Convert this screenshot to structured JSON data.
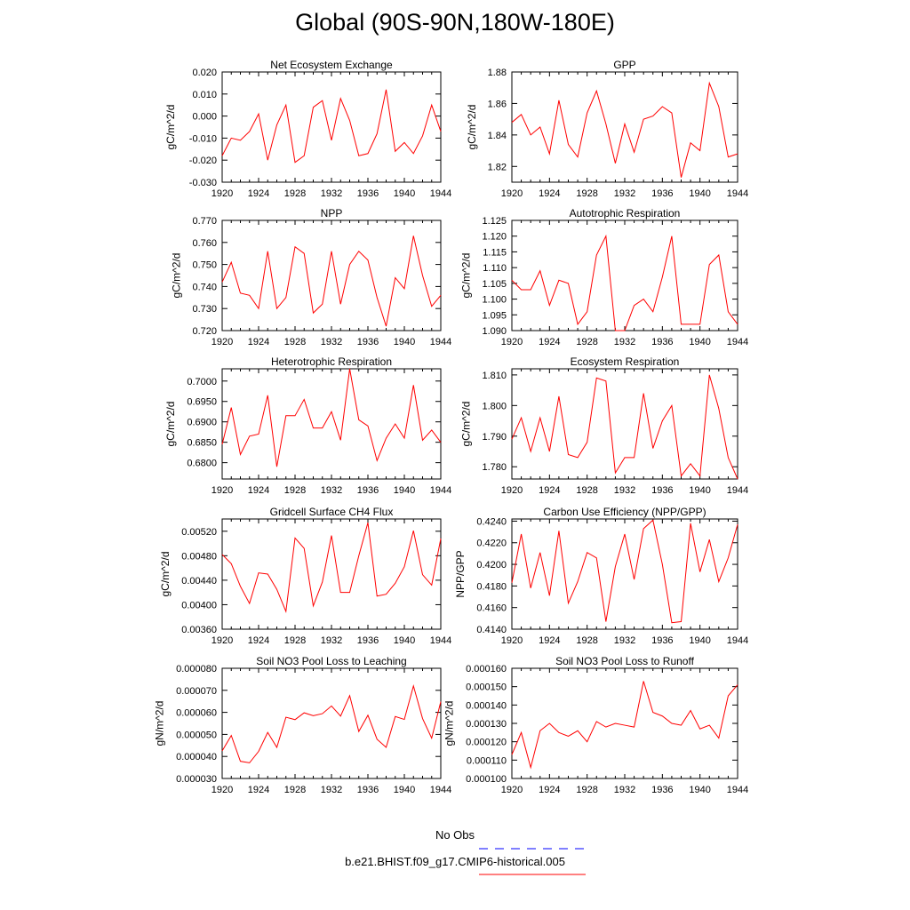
{
  "title": "Global (90S-90N,180W-180E)",
  "legend": [
    {
      "label": "No Obs",
      "color": "#0000ff",
      "dash": true
    },
    {
      "label": "b.e21.BHIST.f09_g17.CMIP6-historical.005",
      "color": "#ff0000",
      "dash": false
    }
  ],
  "chart_data": [
    {
      "type": "line",
      "title": "Net Ecosystem Exchange",
      "ylabel": "gC/m^2/d",
      "x": [
        1920,
        1921,
        1922,
        1923,
        1924,
        1925,
        1926,
        1927,
        1928,
        1929,
        1930,
        1931,
        1932,
        1933,
        1934,
        1935,
        1936,
        1937,
        1938,
        1939,
        1940,
        1941,
        1942,
        1943,
        1944
      ],
      "xticks": [
        1920,
        1924,
        1928,
        1932,
        1936,
        1940,
        1944
      ],
      "ylim": [
        -0.03,
        0.02
      ],
      "yticks": [
        -0.03,
        -0.02,
        -0.01,
        0.0,
        0.01,
        0.02
      ],
      "yticklabels": [
        "-0.030",
        "-0.020",
        "-0.010",
        "0.000",
        "0.010",
        "0.020"
      ],
      "series": [
        {
          "color": "#ff0000",
          "values": [
            -0.018,
            -0.01,
            -0.011,
            -0.007,
            0.001,
            -0.02,
            -0.004,
            0.005,
            -0.021,
            -0.018,
            0.004,
            0.007,
            -0.011,
            0.008,
            -0.002,
            -0.018,
            -0.017,
            -0.008,
            0.012,
            -0.016,
            -0.012,
            -0.017,
            -0.009,
            0.005,
            -0.007
          ]
        }
      ]
    },
    {
      "type": "line",
      "title": "GPP",
      "ylabel": "gC/m^2/d",
      "x": [
        1920,
        1921,
        1922,
        1923,
        1924,
        1925,
        1926,
        1927,
        1928,
        1929,
        1930,
        1931,
        1932,
        1933,
        1934,
        1935,
        1936,
        1937,
        1938,
        1939,
        1940,
        1941,
        1942,
        1943,
        1944
      ],
      "xticks": [
        1920,
        1924,
        1928,
        1932,
        1936,
        1940,
        1944
      ],
      "ylim": [
        1.81,
        1.88
      ],
      "yticks": [
        1.82,
        1.84,
        1.86,
        1.88
      ],
      "yticklabels": [
        "1.82",
        "1.84",
        "1.86",
        "1.88"
      ],
      "series": [
        {
          "color": "#ff0000",
          "values": [
            1.848,
            1.853,
            1.84,
            1.845,
            1.828,
            1.862,
            1.834,
            1.826,
            1.854,
            1.868,
            1.847,
            1.822,
            1.847,
            1.829,
            1.85,
            1.852,
            1.858,
            1.854,
            1.813,
            1.835,
            1.83,
            1.873,
            1.858,
            1.826,
            1.828
          ]
        }
      ]
    },
    {
      "type": "line",
      "title": "NPP",
      "ylabel": "gC/m^2/d",
      "x": [
        1920,
        1921,
        1922,
        1923,
        1924,
        1925,
        1926,
        1927,
        1928,
        1929,
        1930,
        1931,
        1932,
        1933,
        1934,
        1935,
        1936,
        1937,
        1938,
        1939,
        1940,
        1941,
        1942,
        1943,
        1944
      ],
      "xticks": [
        1920,
        1924,
        1928,
        1932,
        1936,
        1940,
        1944
      ],
      "ylim": [
        0.72,
        0.77
      ],
      "yticks": [
        0.72,
        0.73,
        0.74,
        0.75,
        0.76,
        0.77
      ],
      "yticklabels": [
        "0.720",
        "0.730",
        "0.740",
        "0.750",
        "0.760",
        "0.770"
      ],
      "series": [
        {
          "color": "#ff0000",
          "values": [
            0.742,
            0.751,
            0.737,
            0.736,
            0.73,
            0.756,
            0.73,
            0.735,
            0.758,
            0.755,
            0.728,
            0.732,
            0.756,
            0.732,
            0.75,
            0.756,
            0.752,
            0.735,
            0.722,
            0.744,
            0.739,
            0.763,
            0.745,
            0.731,
            0.736
          ]
        }
      ]
    },
    {
      "type": "line",
      "title": "Autotrophic Respiration",
      "ylabel": "gC/m^2/d",
      "x": [
        1920,
        1921,
        1922,
        1923,
        1924,
        1925,
        1926,
        1927,
        1928,
        1929,
        1930,
        1931,
        1932,
        1933,
        1934,
        1935,
        1936,
        1937,
        1938,
        1939,
        1940,
        1941,
        1942,
        1943,
        1944
      ],
      "xticks": [
        1920,
        1924,
        1928,
        1932,
        1936,
        1940,
        1944
      ],
      "ylim": [
        1.09,
        1.125
      ],
      "yticks": [
        1.09,
        1.095,
        1.1,
        1.105,
        1.11,
        1.115,
        1.12,
        1.125
      ],
      "yticklabels": [
        "1.090",
        "1.095",
        "1.100",
        "1.105",
        "1.110",
        "1.115",
        "1.120",
        "1.125"
      ],
      "series": [
        {
          "color": "#ff0000",
          "values": [
            1.106,
            1.103,
            1.103,
            1.109,
            1.098,
            1.106,
            1.105,
            1.092,
            1.096,
            1.114,
            1.12,
            1.09,
            1.09,
            1.098,
            1.1,
            1.096,
            1.107,
            1.12,
            1.092,
            1.092,
            1.092,
            1.111,
            1.114,
            1.096,
            1.092
          ]
        }
      ]
    },
    {
      "type": "line",
      "title": "Heterotrophic Respiration",
      "ylabel": "gC/m^2/d",
      "x": [
        1920,
        1921,
        1922,
        1923,
        1924,
        1925,
        1926,
        1927,
        1928,
        1929,
        1930,
        1931,
        1932,
        1933,
        1934,
        1935,
        1936,
        1937,
        1938,
        1939,
        1940,
        1941,
        1942,
        1943,
        1944
      ],
      "xticks": [
        1920,
        1924,
        1928,
        1932,
        1936,
        1940,
        1944
      ],
      "ylim": [
        0.676,
        0.703
      ],
      "yticks": [
        0.68,
        0.685,
        0.69,
        0.695,
        0.7
      ],
      "yticklabels": [
        "0.6800",
        "0.6850",
        "0.6900",
        "0.6950",
        "0.7000"
      ],
      "series": [
        {
          "color": "#ff0000",
          "values": [
            0.6845,
            0.6935,
            0.682,
            0.6865,
            0.687,
            0.6965,
            0.679,
            0.6915,
            0.6915,
            0.6955,
            0.6885,
            0.6885,
            0.6925,
            0.6855,
            0.703,
            0.6905,
            0.689,
            0.6805,
            0.686,
            0.6895,
            0.686,
            0.699,
            0.6855,
            0.688,
            0.685
          ]
        }
      ]
    },
    {
      "type": "line",
      "title": "Ecosystem Respiration",
      "ylabel": "gC/m^2/d",
      "x": [
        1920,
        1921,
        1922,
        1923,
        1924,
        1925,
        1926,
        1927,
        1928,
        1929,
        1930,
        1931,
        1932,
        1933,
        1934,
        1935,
        1936,
        1937,
        1938,
        1939,
        1940,
        1941,
        1942,
        1943,
        1944
      ],
      "xticks": [
        1920,
        1924,
        1928,
        1932,
        1936,
        1940,
        1944
      ],
      "ylim": [
        1.776,
        1.812
      ],
      "yticks": [
        1.78,
        1.79,
        1.8,
        1.81
      ],
      "yticklabels": [
        "1.780",
        "1.790",
        "1.800",
        "1.810"
      ],
      "series": [
        {
          "color": "#ff0000",
          "values": [
            1.789,
            1.796,
            1.785,
            1.796,
            1.785,
            1.803,
            1.784,
            1.783,
            1.788,
            1.809,
            1.808,
            1.778,
            1.783,
            1.783,
            1.804,
            1.786,
            1.795,
            1.8,
            1.777,
            1.781,
            1.777,
            1.81,
            1.799,
            1.783,
            1.776
          ]
        }
      ]
    },
    {
      "type": "line",
      "title": "Gridcell Surface CH4 Flux",
      "ylabel": "gC/m^2/d",
      "x": [
        1920,
        1921,
        1922,
        1923,
        1924,
        1925,
        1926,
        1927,
        1928,
        1929,
        1930,
        1931,
        1932,
        1933,
        1934,
        1935,
        1936,
        1937,
        1938,
        1939,
        1940,
        1941,
        1942,
        1943,
        1944
      ],
      "xticks": [
        1920,
        1924,
        1928,
        1932,
        1936,
        1940,
        1944
      ],
      "ylim": [
        0.0036,
        0.0054
      ],
      "yticks": [
        0.0036,
        0.004,
        0.0044,
        0.0048,
        0.0052
      ],
      "yticklabels": [
        "0.00360",
        "0.00400",
        "0.00440",
        "0.00480",
        "0.00520"
      ],
      "series": [
        {
          "color": "#ff0000",
          "values": [
            0.00482,
            0.00467,
            0.0043,
            0.00402,
            0.00452,
            0.0045,
            0.00425,
            0.00389,
            0.00509,
            0.00492,
            0.00398,
            0.00437,
            0.00513,
            0.0042,
            0.0042,
            0.0048,
            0.00534,
            0.00414,
            0.00417,
            0.00435,
            0.00462,
            0.00521,
            0.00449,
            0.00432,
            0.00508
          ]
        }
      ]
    },
    {
      "type": "line",
      "title": "Carbon Use Efficiency (NPP/GPP)",
      "ylabel": "NPP/GPP",
      "x": [
        1920,
        1921,
        1922,
        1923,
        1924,
        1925,
        1926,
        1927,
        1928,
        1929,
        1930,
        1931,
        1932,
        1933,
        1934,
        1935,
        1936,
        1937,
        1938,
        1939,
        1940,
        1941,
        1942,
        1943,
        1944
      ],
      "xticks": [
        1920,
        1924,
        1928,
        1932,
        1936,
        1940,
        1944
      ],
      "ylim": [
        0.414,
        0.4242
      ],
      "yticks": [
        0.414,
        0.416,
        0.418,
        0.42,
        0.422,
        0.424
      ],
      "yticklabels": [
        "0.4140",
        "0.4160",
        "0.4180",
        "0.4200",
        "0.4220",
        "0.4240"
      ],
      "series": [
        {
          "color": "#ff0000",
          "values": [
            0.4183,
            0.4228,
            0.4178,
            0.4211,
            0.4171,
            0.4231,
            0.4164,
            0.4184,
            0.4211,
            0.4206,
            0.4147,
            0.4198,
            0.4228,
            0.4186,
            0.4233,
            0.4241,
            0.42,
            0.4146,
            0.4147,
            0.4238,
            0.4193,
            0.4223,
            0.4184,
            0.4206,
            0.4237
          ]
        }
      ]
    },
    {
      "type": "line",
      "title": "Soil NO3 Pool Loss to Leaching",
      "ylabel": "gN/m^2/d",
      "x": [
        1920,
        1921,
        1922,
        1923,
        1924,
        1925,
        1926,
        1927,
        1928,
        1929,
        1930,
        1931,
        1932,
        1933,
        1934,
        1935,
        1936,
        1937,
        1938,
        1939,
        1940,
        1941,
        1942,
        1943,
        1944
      ],
      "xticks": [
        1920,
        1924,
        1928,
        1932,
        1936,
        1940,
        1944
      ],
      "ylim": [
        3e-05,
        8e-05
      ],
      "yticks": [
        3e-05,
        4e-05,
        5e-05,
        6e-05,
        7e-05,
        8e-05
      ],
      "yticklabels": [
        "0.000030",
        "0.000040",
        "0.000050",
        "0.000060",
        "0.000070",
        "0.000080"
      ],
      "series": [
        {
          "color": "#ff0000",
          "values": [
            4.25e-05,
            4.95e-05,
            3.78e-05,
            3.71e-05,
            4.23e-05,
            5.09e-05,
            4.41e-05,
            5.78e-05,
            5.67e-05,
            5.98e-05,
            5.85e-05,
            5.94e-05,
            6.29e-05,
            5.83e-05,
            6.76e-05,
            5.13e-05,
            5.87e-05,
            4.78e-05,
            4.41e-05,
            5.81e-05,
            5.68e-05,
            7.2e-05,
            5.72e-05,
            4.83e-05,
            6.49e-05
          ]
        }
      ]
    },
    {
      "type": "line",
      "title": "Soil NO3 Pool Loss to Runoff",
      "ylabel": "gN/m^2/d",
      "x": [
        1920,
        1921,
        1922,
        1923,
        1924,
        1925,
        1926,
        1927,
        1928,
        1929,
        1930,
        1931,
        1932,
        1933,
        1934,
        1935,
        1936,
        1937,
        1938,
        1939,
        1940,
        1941,
        1942,
        1943,
        1944
      ],
      "xticks": [
        1920,
        1924,
        1928,
        1932,
        1936,
        1940,
        1944
      ],
      "ylim": [
        0.0001,
        0.00016
      ],
      "yticks": [
        0.0001,
        0.00011,
        0.00012,
        0.00013,
        0.00014,
        0.00015,
        0.00016
      ],
      "yticklabels": [
        "0.000100",
        "0.000110",
        "0.000120",
        "0.000130",
        "0.000140",
        "0.000150",
        "0.000160"
      ],
      "series": [
        {
          "color": "#ff0000",
          "values": [
            0.000113,
            0.000125,
            0.000106,
            0.000126,
            0.00013,
            0.000125,
            0.000123,
            0.000126,
            0.00012,
            0.000131,
            0.000128,
            0.00013,
            0.000129,
            0.000128,
            0.000153,
            0.000136,
            0.000134,
            0.00013,
            0.000129,
            0.000137,
            0.000127,
            0.000129,
            0.000122,
            0.000145,
            0.000151
          ]
        }
      ]
    }
  ]
}
